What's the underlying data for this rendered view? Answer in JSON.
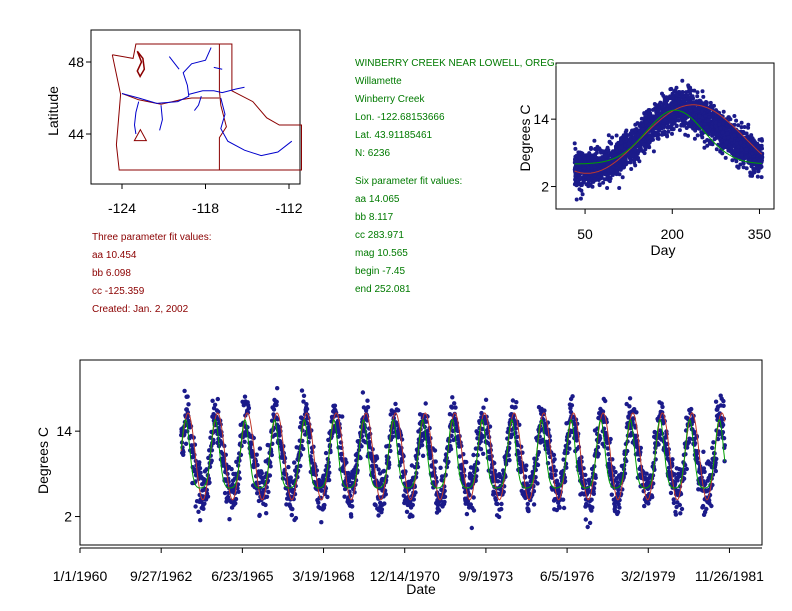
{
  "colors": {
    "background": "#ffffff",
    "axis": "#000000",
    "points": "#1b1b8a",
    "fit_red": "#c0392b",
    "fit_green": "#00a000",
    "map_border": "#8b0000",
    "map_rivers": "#0000cc",
    "text_red": "#8b0000",
    "text_green": "#007a00"
  },
  "three_param": {
    "header": "Three parameter fit values:",
    "aa": "aa 10.454",
    "bb": "bb 6.098",
    "cc": "cc -125.359",
    "created": "Created:   Jan. 2, 2002"
  },
  "site": {
    "name": "WINBERRY CREEK NEAR LOWELL, OREG.",
    "basin": "Willamette",
    "stream": "Winberry Creek",
    "lon": "Lon. -122.68153666",
    "lat": "Lat. 43.91185461",
    "n": "N: 6236"
  },
  "six_param": {
    "header": "Six parameter fit values:",
    "aa": "aa 14.065",
    "bb": "bb 8.117",
    "cc": "cc 283.971",
    "mag": "mag 10.565",
    "begin": "begin -7.45",
    "end": "end 252.081"
  },
  "chart_data": [
    {
      "type": "map",
      "ylabel": "Latitude",
      "x_ticks": [
        "-124",
        "-118",
        "-112"
      ],
      "y_ticks": [
        "48",
        "44"
      ],
      "xlim": [
        -126.2,
        -109.9
      ],
      "ylim": [
        41.6,
        49.6
      ],
      "site_marker": {
        "lon": -122.68,
        "lat": 43.91,
        "symbol": "triangle"
      }
    },
    {
      "type": "scatter",
      "xlabel": "Day",
      "ylabel": "Degrees C",
      "x_ticks": [
        50,
        200,
        350
      ],
      "y_ticks": [
        2,
        14
      ],
      "xlim": [
        0,
        375
      ],
      "ylim": [
        -2,
        24
      ],
      "day_range": [
        32,
        355
      ],
      "series": [
        {
          "type": "points",
          "model": "seasonal"
        },
        {
          "type": "line",
          "model": "three_param_fit",
          "color": "red"
        },
        {
          "type": "line",
          "model": "six_param_fit",
          "color": "green"
        }
      ]
    },
    {
      "type": "scatter",
      "xlabel": "Date",
      "ylabel": "Degrees C",
      "x_tick_labels": [
        "1/1/1960",
        "9/27/1962",
        "6/23/1965",
        "3/19/1968",
        "12/14/1970",
        "9/9/1973",
        "6/5/1976",
        "3/2/1979",
        "11/26/1981"
      ],
      "x_tick_dates": [
        "1960-01-01",
        "1962-09-27",
        "1965-06-23",
        "1968-03-19",
        "1970-12-14",
        "1973-09-09",
        "1976-06-05",
        "1979-03-02",
        "1981-11-26"
      ],
      "y_ticks": [
        2,
        14
      ],
      "xlim": [
        "1960-01-01",
        "1983-01-01"
      ],
      "ylim": [
        -2,
        24
      ],
      "date_range": [
        "1963-06-01",
        "1981-10-01"
      ],
      "series": [
        {
          "type": "points",
          "model": "daily_temperature"
        },
        {
          "type": "line",
          "model": "three_param_fit",
          "color": "red"
        },
        {
          "type": "line",
          "model": "six_param_fit",
          "color": "green"
        }
      ]
    }
  ]
}
